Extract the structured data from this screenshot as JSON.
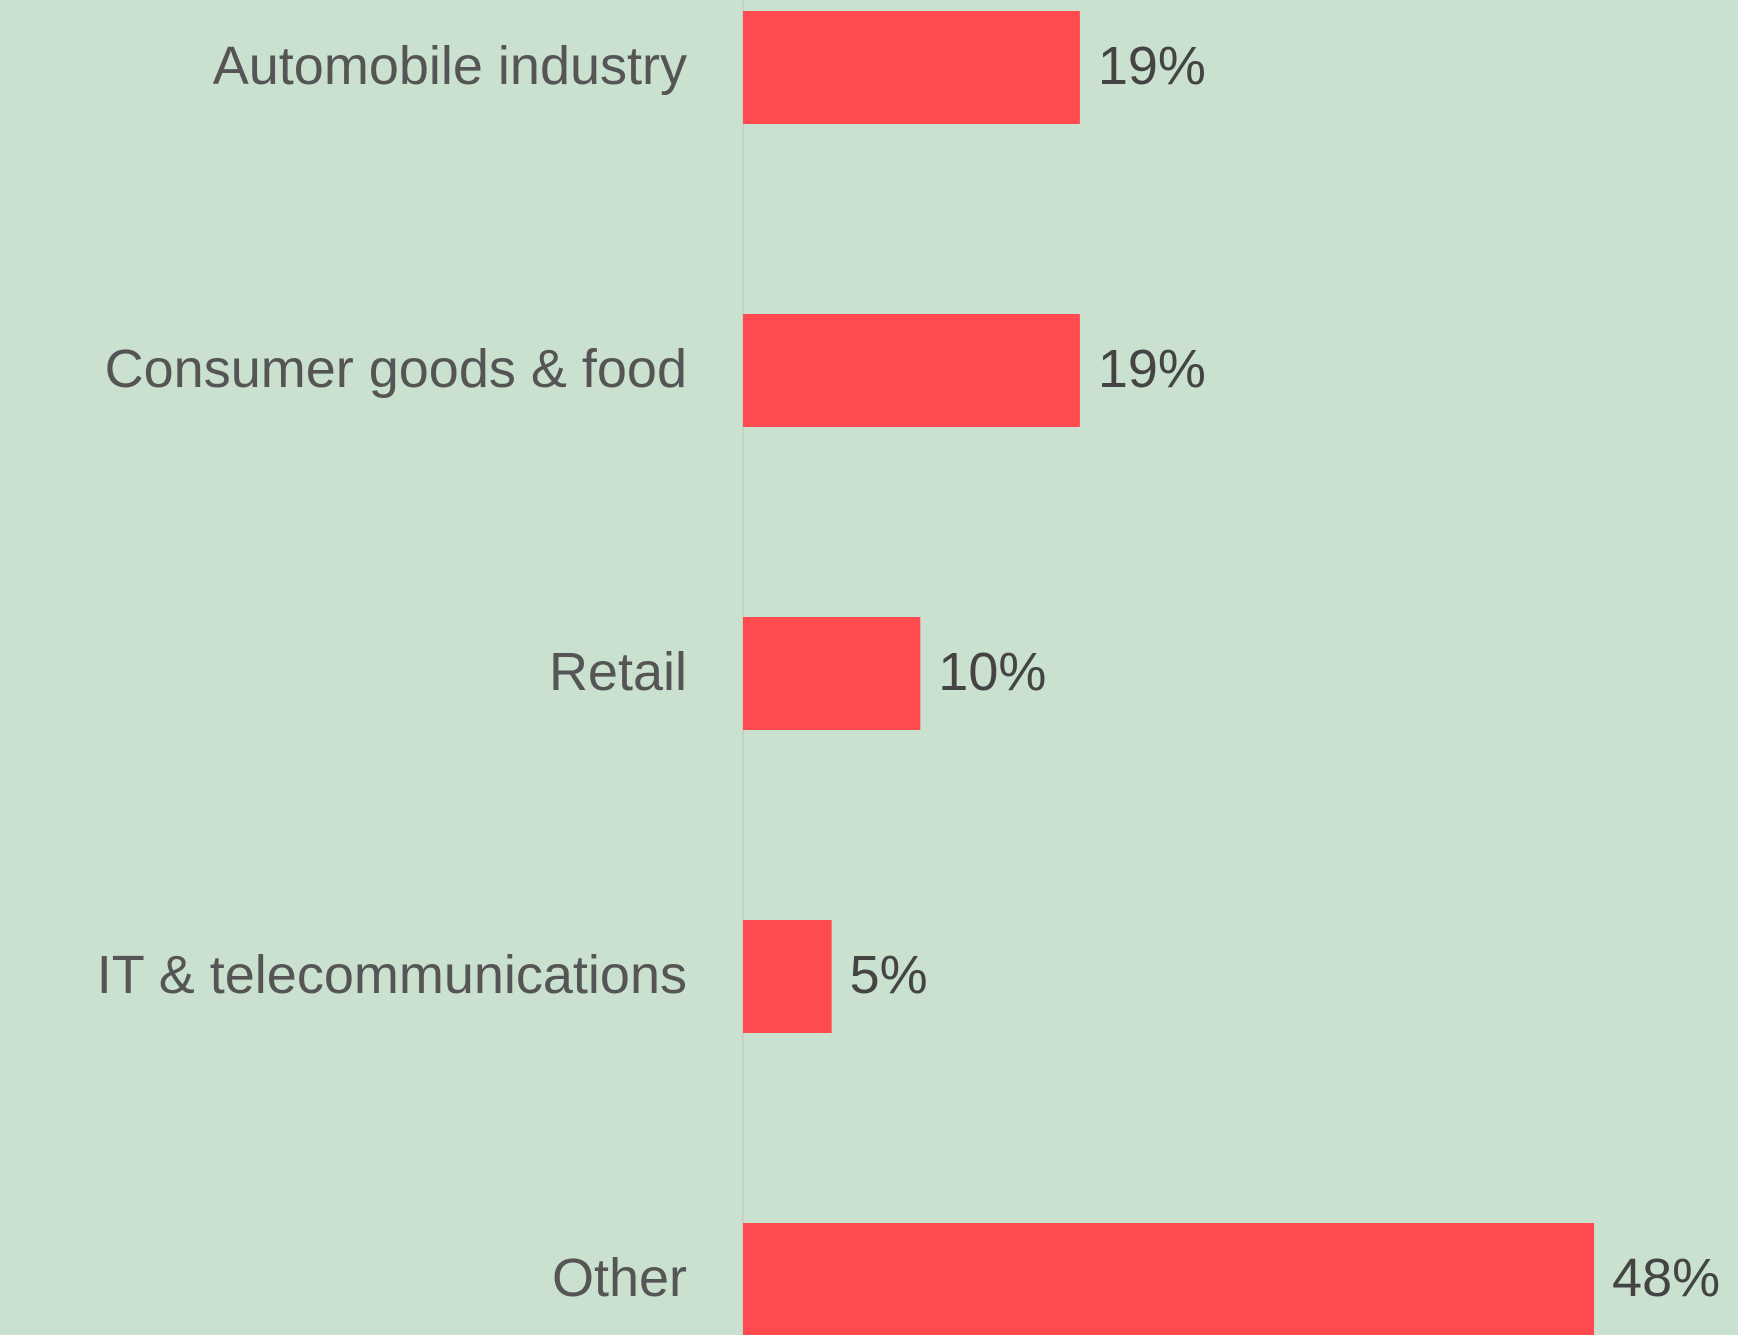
{
  "chart_data": {
    "type": "barh",
    "categories": [
      "Automobile industry",
      "Consumer goods & food",
      "Retail",
      "IT & telecommunications",
      "Other"
    ],
    "values": [
      19,
      19,
      10,
      5,
      48
    ],
    "value_labels": [
      "19%",
      "19%",
      "10%",
      "5%",
      "48%"
    ],
    "color": "#ff4a50"
  }
}
